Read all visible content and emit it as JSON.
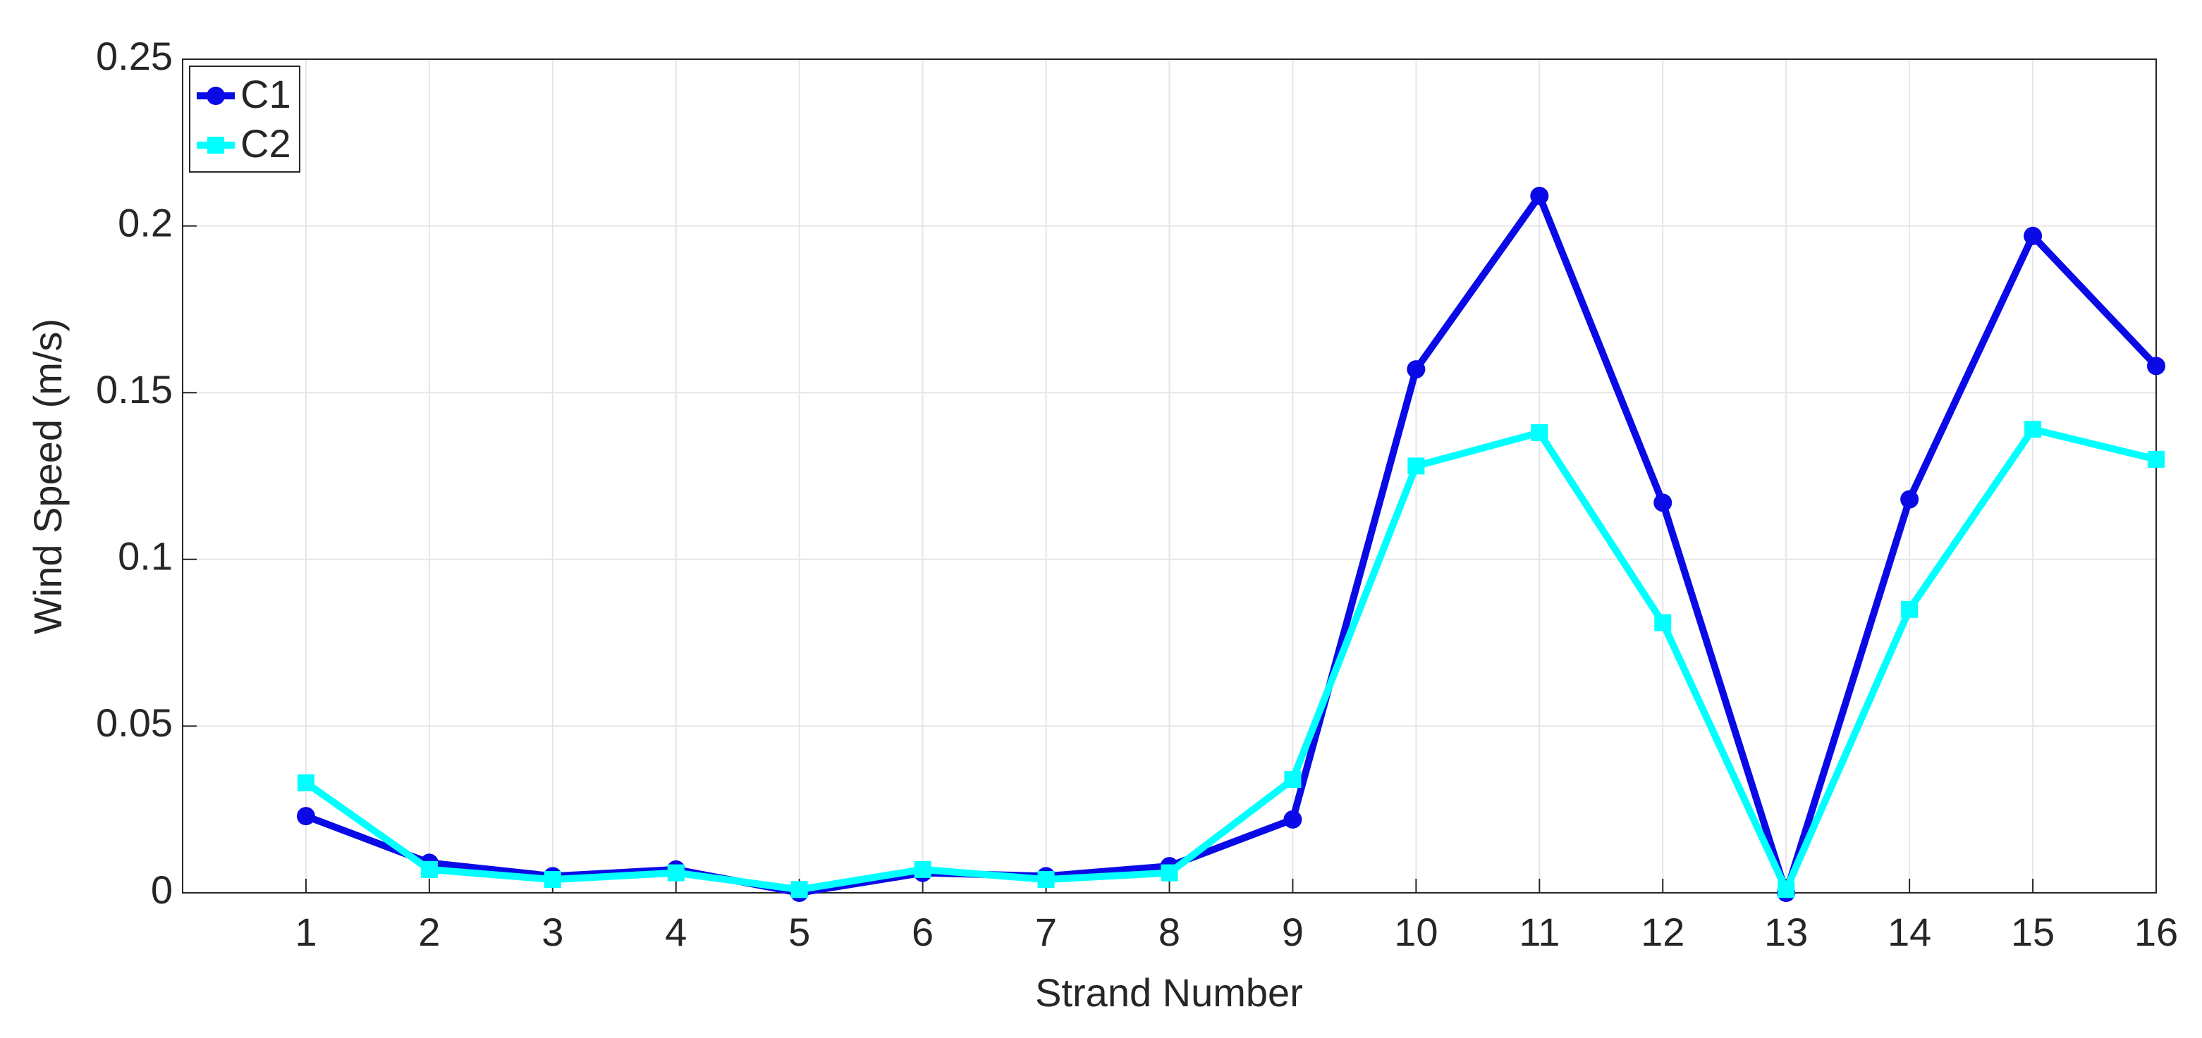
{
  "chart_data": {
    "type": "line",
    "x_label": "Strand Number",
    "y_label": "Wind Speed (m/s)",
    "x": [
      1,
      2,
      3,
      4,
      5,
      6,
      7,
      8,
      9,
      10,
      11,
      12,
      13,
      14,
      15,
      16
    ],
    "series": [
      {
        "name": "C1",
        "color": "#0a0ae6",
        "marker": "circle",
        "values": [
          0.023,
          0.009,
          0.005,
          0.007,
          0,
          0.006,
          0.005,
          0.008,
          0.022,
          0.157,
          0.209,
          0.117,
          0,
          0.118,
          0.197,
          0.158
        ]
      },
      {
        "name": "C2",
        "color": "#00ffff",
        "marker": "square",
        "values": [
          0.033,
          0.007,
          0.004,
          0.006,
          0.001,
          0.007,
          0.004,
          0.006,
          0.034,
          0.128,
          0.138,
          0.081,
          0.001,
          0.085,
          0.139,
          0.13
        ]
      }
    ],
    "xlim": [
      0,
      16
    ],
    "xticks": [
      1,
      2,
      3,
      4,
      5,
      6,
      7,
      8,
      9,
      10,
      11,
      12,
      13,
      14,
      15,
      16
    ],
    "ylim": [
      0,
      0.25
    ],
    "yticks": [
      0,
      0.05,
      0.1,
      0.15,
      0.2,
      0.25
    ],
    "grid": true,
    "legend": "top-left"
  }
}
